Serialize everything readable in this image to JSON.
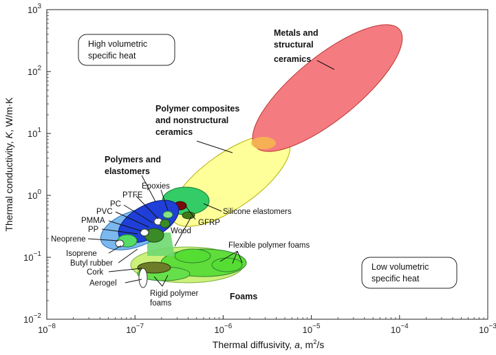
{
  "chart_data": {
    "type": "scatter",
    "subtype": "material-property-map (Ashby chart)",
    "xlabel_main": "Thermal diffusivity, ",
    "xlabel_sym": "a",
    "xlabel_unit": ", m",
    "xlabel_exp": "2",
    "xlabel_tail": "/s",
    "ylabel_main": "Thermal conductivity, ",
    "ylabel_sym": "K",
    "ylabel_unit": ", W/m·K",
    "x_scale": "log",
    "y_scale": "log",
    "xlim": [
      1e-08,
      0.001
    ],
    "ylim": [
      0.01,
      1000
    ],
    "x_ticks": [
      {
        "value": 1e-08,
        "base": "10",
        "exp": "−8"
      },
      {
        "value": 1e-07,
        "base": "10",
        "exp": "−7"
      },
      {
        "value": 1e-06,
        "base": "10",
        "exp": "−6"
      },
      {
        "value": 1e-05,
        "base": "10",
        "exp": "−5"
      },
      {
        "value": 0.0001,
        "base": "10",
        "exp": "−4"
      },
      {
        "value": 0.001,
        "base": "10",
        "exp": "−3"
      }
    ],
    "y_ticks": [
      {
        "value": 0.01,
        "base": "10",
        "exp": "−2"
      },
      {
        "value": 0.1,
        "base": "10",
        "exp": "−1"
      },
      {
        "value": 1,
        "base": "10",
        "exp": "0"
      },
      {
        "value": 10,
        "base": "10",
        "exp": "1"
      },
      {
        "value": 100,
        "base": "10",
        "exp": "2"
      },
      {
        "value": 1000,
        "base": "10",
        "exp": "3"
      }
    ],
    "regions": [
      {
        "name": "Metals and structural ceramics",
        "x_range": [
          2e-06,
          0.0001
        ],
        "y_range": [
          4,
          400
        ],
        "color": "#f47c80"
      },
      {
        "name": "Polymer composites and nonstructural ceramics",
        "x_range": [
          1.8e-07,
          5e-06
        ],
        "y_range": [
          0.5,
          6
        ],
        "color": "#ffff99"
      },
      {
        "name": "Polymers and elastomers",
        "x_range": [
          6e-08,
          2.5e-07
        ],
        "y_range": [
          0.1,
          0.55
        ],
        "color": "#1f3fd8"
      },
      {
        "name": "Foams",
        "x_range": [
          4e-08,
          2e-06
        ],
        "y_range": [
          0.025,
          0.06
        ],
        "color": "#ccf07a"
      },
      {
        "name": "Silicone elastomers",
        "x": 2e-07,
        "y": 0.7,
        "color": "#33cc66"
      },
      {
        "name": "GFRP",
        "x": 2.2e-07,
        "y": 0.45,
        "color": "#7a0a0a"
      },
      {
        "name": "Wood",
        "x": 2.8e-07,
        "y": 0.32,
        "color": "#3f7a18"
      }
    ],
    "labels": {
      "metals": [
        "Metals and",
        "structural",
        "ceramics"
      ],
      "composites": [
        "Polymer composites",
        "and nonstructural",
        "ceramics"
      ],
      "polymers": [
        "Polymers and",
        "elastomers"
      ],
      "foams": "Foams",
      "epoxies": "Epoxies",
      "ptfe": "PTFE",
      "pc": "PC",
      "pvc": "PVC",
      "pmma": "PMMA",
      "pp": "PP",
      "neoprene": "Neoprene",
      "isoprene": "Isoprene",
      "butyl": "Butyl rubber",
      "cork": "Cork",
      "aerogel": "Aerogel",
      "rigid": [
        "Rigid polymer",
        "foams"
      ],
      "flexible": "Flexible polymer foams",
      "silicone": "Silicone elastomers",
      "gfrp": "GFRP",
      "wood": "Wood"
    },
    "annotations": {
      "high": [
        "High volumetric",
        "specific heat"
      ],
      "low": [
        "Low volumetric",
        "specific heat"
      ]
    }
  }
}
